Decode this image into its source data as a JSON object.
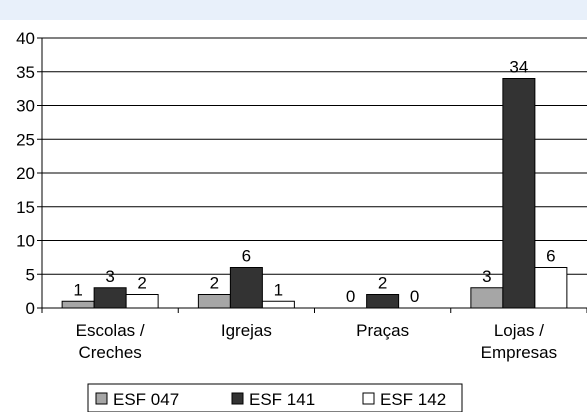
{
  "chart_data": {
    "type": "bar",
    "categories": [
      [
        "Escolas /",
        "Creches"
      ],
      [
        "Igrejas"
      ],
      [
        "Praças"
      ],
      [
        "Lojas /",
        "Empresas"
      ]
    ],
    "series": [
      {
        "name": "ESF 047",
        "values": [
          1,
          2,
          0,
          3
        ],
        "color": "#a6a6a6"
      },
      {
        "name": "ESF 141",
        "values": [
          3,
          6,
          2,
          34
        ],
        "color": "#333333"
      },
      {
        "name": "ESF 142",
        "values": [
          2,
          1,
          0,
          6
        ],
        "color": "#ffffff"
      }
    ],
    "ylim": [
      0,
      40
    ],
    "yticks": [
      "0",
      "5",
      "10",
      "15",
      "20",
      "25",
      "30",
      "35",
      "40"
    ],
    "grid": true,
    "legend_position": "bottom"
  }
}
